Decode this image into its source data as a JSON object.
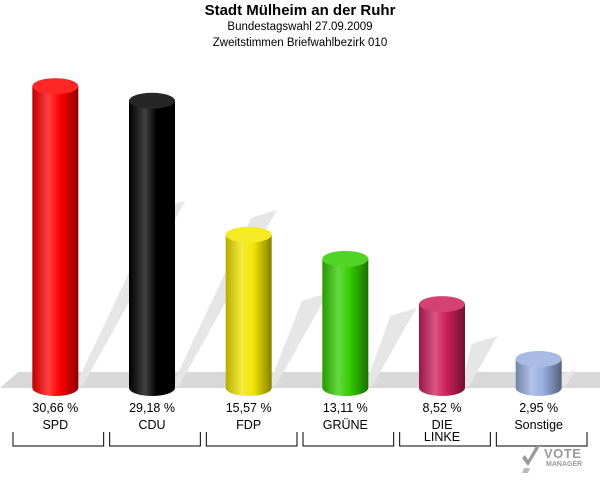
{
  "header": {
    "title": "Stadt Mülheim an der Ruhr",
    "subtitle": "Bundestagswahl 27.09.2009",
    "subtitle2": "Zweitstimmen Briefwahlbezirk 010"
  },
  "logo": {
    "text": "VOTE",
    "subtext": "MANAGER"
  },
  "chart_data": {
    "type": "bar",
    "title": "Stadt Mülheim an der Ruhr",
    "subtitle": "Bundestagswahl 27.09.2009 — Zweitstimmen Briefwahlbezirk 010",
    "categories": [
      "SPD",
      "CDU",
      "FDP",
      "GRÜNE",
      "DIE LINKE",
      "Sonstige"
    ],
    "category_lines": [
      [
        "SPD"
      ],
      [
        "CDU"
      ],
      [
        "FDP"
      ],
      [
        "GRÜNE"
      ],
      [
        "DIE",
        "LINKE"
      ],
      [
        "Sonstige"
      ]
    ],
    "values": [
      30.66,
      29.18,
      15.57,
      13.11,
      8.52,
      2.95
    ],
    "value_labels": [
      "30,66 %",
      "29,18 %",
      "15,57 %",
      "13,11 %",
      "8,52 %",
      "2,95 %"
    ],
    "colors": [
      "#ff0000",
      "#000000",
      "#f2e600",
      "#33cc00",
      "#cc1f5a",
      "#9aaee0"
    ],
    "xlabel": "",
    "ylabel": "",
    "ylim": [
      0,
      32
    ],
    "grid": false,
    "legend": "none"
  }
}
